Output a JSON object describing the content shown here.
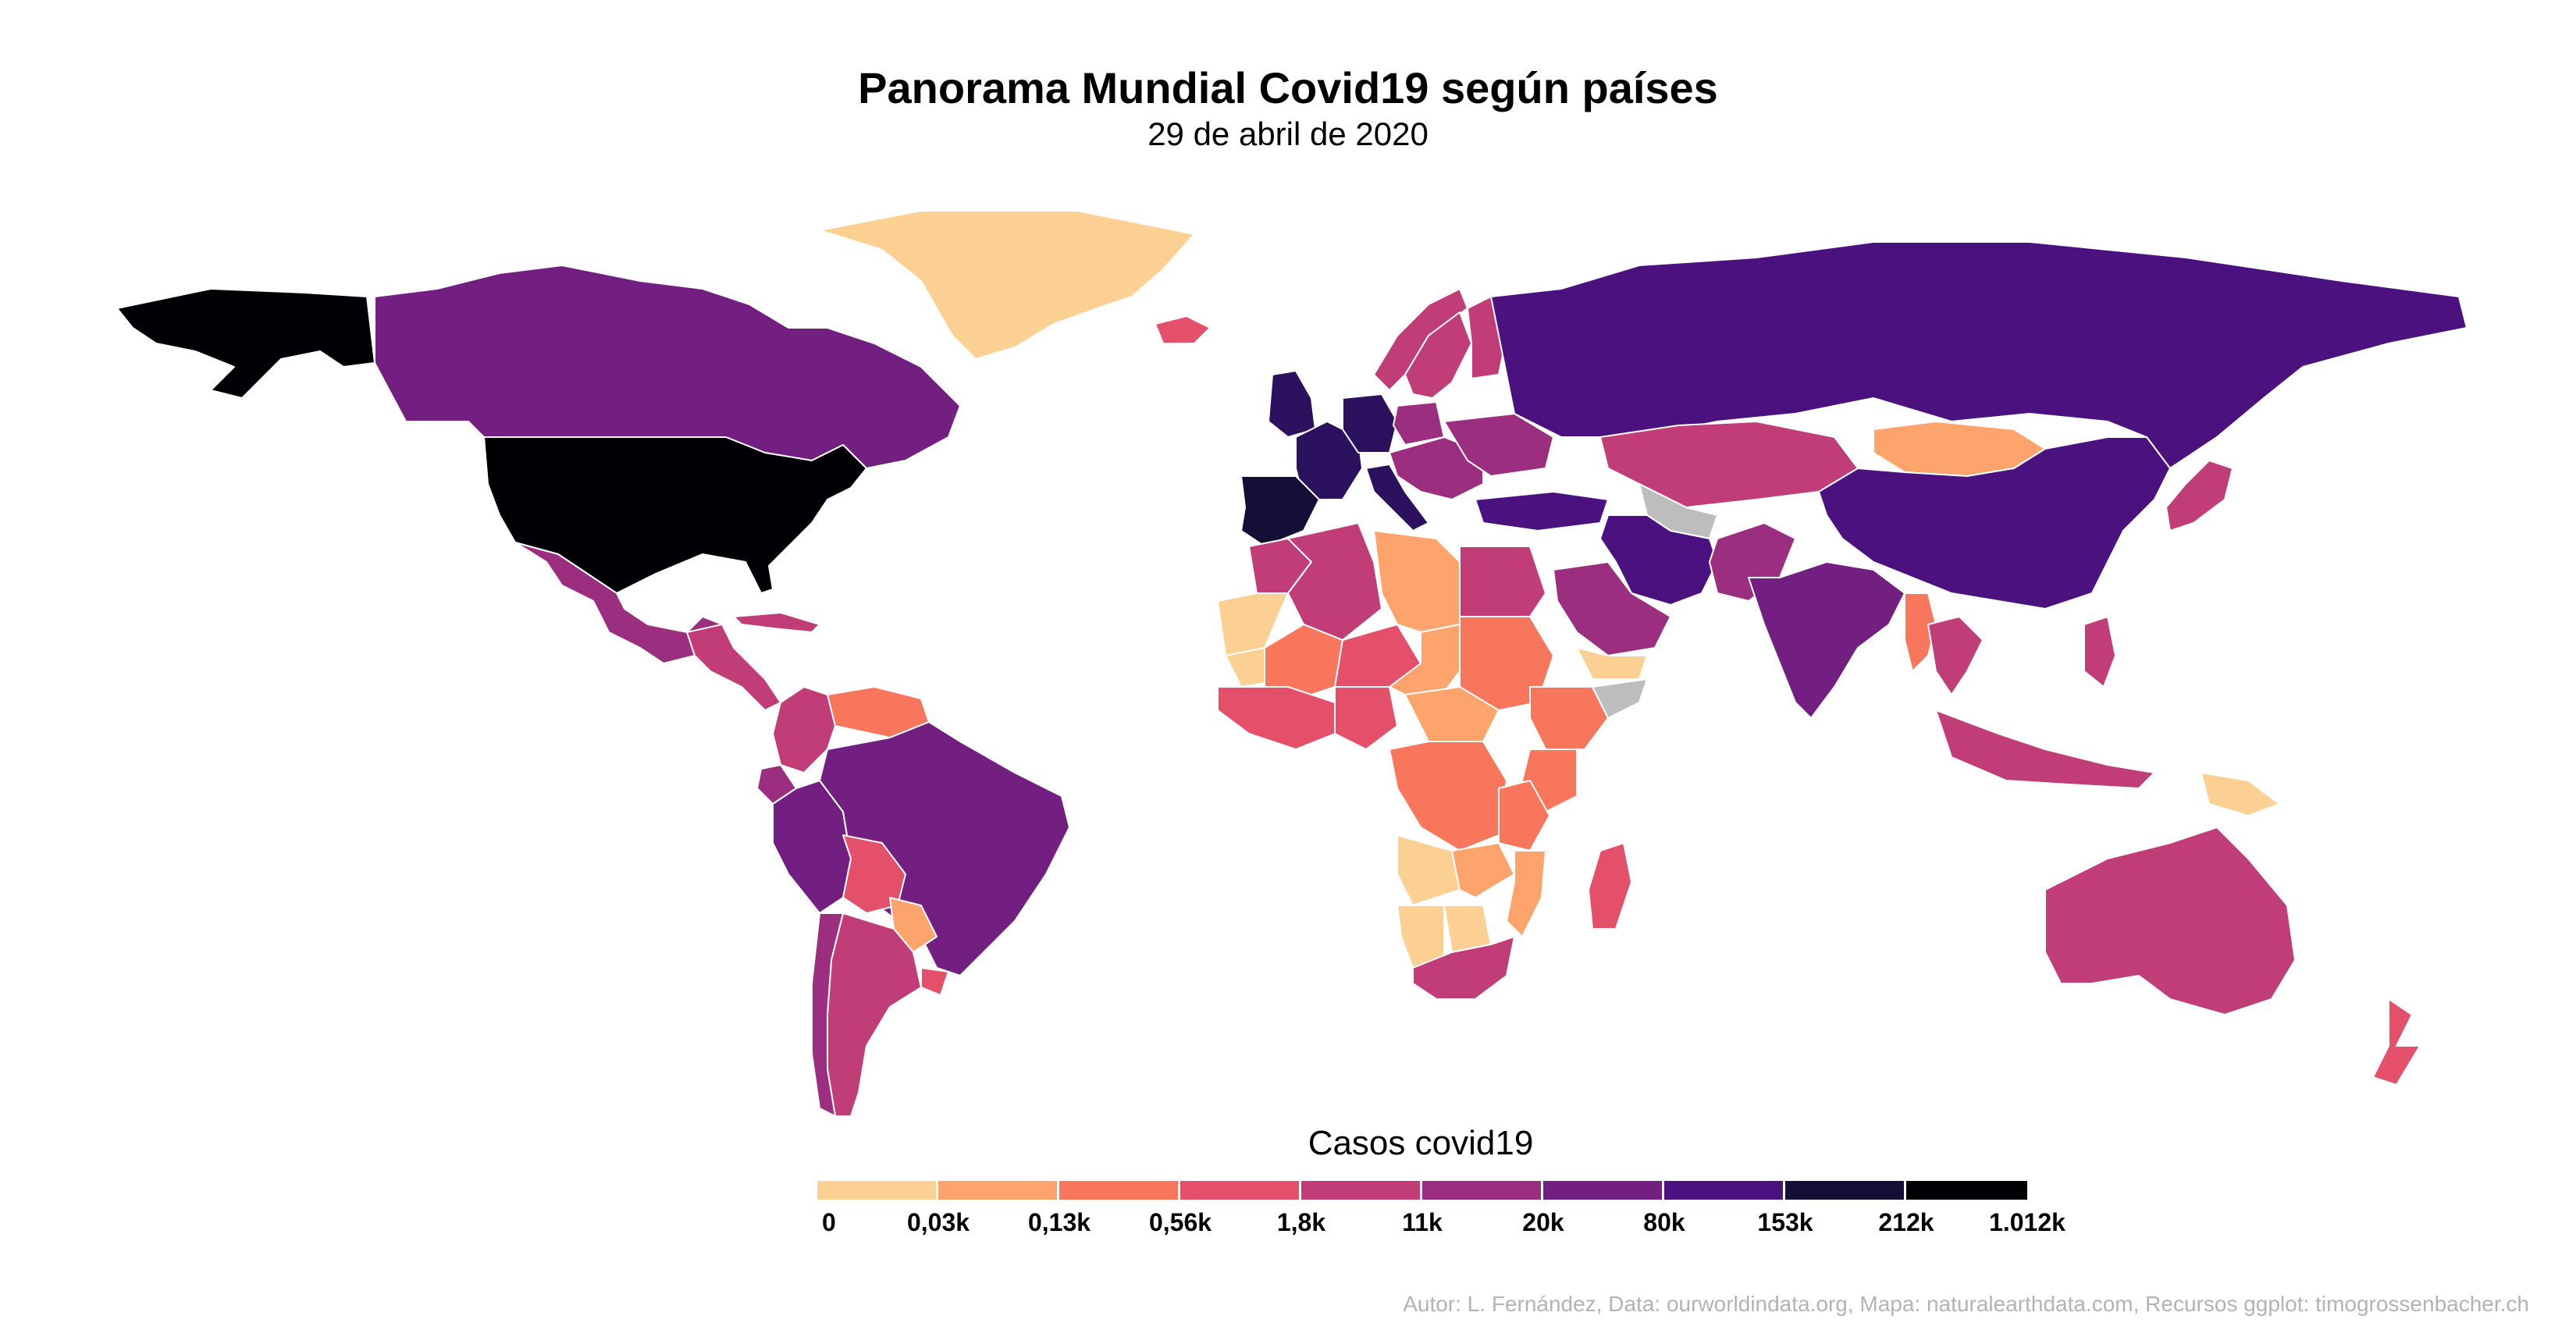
{
  "title": "Panorama Mundial Covid19 según países",
  "subtitle": "29 de abril de 2020",
  "legend": {
    "title": "Casos covid19",
    "labels": [
      "0",
      "0,03k",
      "0,13k",
      "0,56k",
      "1,8k",
      "11k",
      "20k",
      "80k",
      "153k",
      "212k",
      "1.012k"
    ],
    "colors": [
      "#fcd092",
      "#fca46c",
      "#f8765c",
      "#e4506a",
      "#c13d78",
      "#9c2e7f",
      "#721f81",
      "#4b117e",
      "#2c115f",
      "#150e37",
      "#000004"
    ]
  },
  "no_data_color": "#bdbdbd",
  "caption": "Autor: L. Fernández, Data: ourworldindata.org, Mapa: naturalearthdata.com, Recursos ggplot: timogrossenbacher.ch",
  "regions": [
    {
      "name": "usa",
      "bin": 10
    },
    {
      "name": "alaska",
      "bin": 10
    },
    {
      "name": "spain",
      "bin": 9
    },
    {
      "name": "germany",
      "bin": 8
    },
    {
      "name": "italy",
      "bin": 8
    },
    {
      "name": "france",
      "bin": 8
    },
    {
      "name": "uk",
      "bin": 8
    },
    {
      "name": "russia",
      "bin": 7
    },
    {
      "name": "china",
      "bin": 7
    },
    {
      "name": "iran",
      "bin": 7
    },
    {
      "name": "turkey",
      "bin": 7
    },
    {
      "name": "brazil",
      "bin": 6
    },
    {
      "name": "canada",
      "bin": 6
    },
    {
      "name": "india",
      "bin": 6
    },
    {
      "name": "peru",
      "bin": 6
    },
    {
      "name": "mexico",
      "bin": 5
    },
    {
      "name": "saudi-arabia",
      "bin": 5
    },
    {
      "name": "chile",
      "bin": 5
    },
    {
      "name": "ecuador",
      "bin": 5
    },
    {
      "name": "colombia",
      "bin": 4
    },
    {
      "name": "argentina",
      "bin": 4
    },
    {
      "name": "australia",
      "bin": 4
    },
    {
      "name": "kazakhstan",
      "bin": 4
    },
    {
      "name": "egypt",
      "bin": 4
    },
    {
      "name": "algeria",
      "bin": 4
    },
    {
      "name": "morocco",
      "bin": 4
    },
    {
      "name": "south-africa",
      "bin": 4
    },
    {
      "name": "japan",
      "bin": 4
    },
    {
      "name": "indonesia",
      "bin": 4
    },
    {
      "name": "sweden",
      "bin": 4
    },
    {
      "name": "norway",
      "bin": 4
    },
    {
      "name": "pakistan",
      "bin": 5
    },
    {
      "name": "bolivia",
      "bin": 3
    },
    {
      "name": "iceland",
      "bin": 3
    },
    {
      "name": "madagascar",
      "bin": 3
    },
    {
      "name": "new-zealand",
      "bin": 3
    },
    {
      "name": "venezuela",
      "bin": 2
    },
    {
      "name": "sudan",
      "bin": 2
    },
    {
      "name": "dr-congo",
      "bin": 2
    },
    {
      "name": "ethiopia",
      "bin": 2
    },
    {
      "name": "tanzania",
      "bin": 2
    },
    {
      "name": "kenya",
      "bin": 2
    },
    {
      "name": "mali",
      "bin": 2
    },
    {
      "name": "niger",
      "bin": 3
    },
    {
      "name": "nigeria",
      "bin": 3
    },
    {
      "name": "myanmar",
      "bin": 2
    },
    {
      "name": "thailand",
      "bin": 4
    },
    {
      "name": "libya",
      "bin": 1
    },
    {
      "name": "chad",
      "bin": 1
    },
    {
      "name": "mongolia",
      "bin": 1
    },
    {
      "name": "paraguay",
      "bin": 1
    },
    {
      "name": "central-africa",
      "bin": 1
    },
    {
      "name": "angola",
      "bin": 0
    },
    {
      "name": "namibia",
      "bin": 0
    },
    {
      "name": "botswana",
      "bin": 0
    },
    {
      "name": "mozambique",
      "bin": 1
    },
    {
      "name": "zambia",
      "bin": 1
    },
    {
      "name": "mauritania",
      "bin": 0
    },
    {
      "name": "yemen",
      "bin": 0
    },
    {
      "name": "greenland",
      "bin": 0
    },
    {
      "name": "papua-new-guinea",
      "bin": 0
    },
    {
      "name": "western-sahara",
      "bin": 0
    },
    {
      "name": "ukraine",
      "bin": 5
    },
    {
      "name": "poland",
      "bin": 5
    },
    {
      "name": "finland",
      "bin": 4
    },
    {
      "name": "philippines",
      "bin": 4
    },
    {
      "name": "uruguay",
      "bin": 3
    },
    {
      "name": "turkmenistan",
      "bin": -1
    },
    {
      "name": "somalia",
      "bin": -1
    }
  ]
}
